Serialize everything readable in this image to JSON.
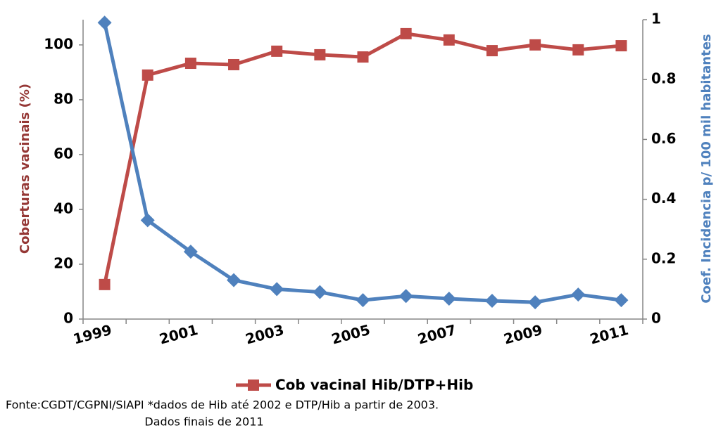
{
  "chart_data": {
    "type": "line",
    "categories": [
      "1999",
      null,
      "2001",
      null,
      "2003",
      null,
      "2005",
      null,
      "2007",
      null,
      "2009",
      null,
      "2011"
    ],
    "series": [
      {
        "name": "Cob vacinal Hib/DTP+Hib",
        "color": "#be4b48",
        "marker": "square",
        "values": [
          12.6,
          89,
          93.3,
          92.8,
          97.7,
          96.4,
          95.6,
          104.1,
          101.8,
          97.9,
          100,
          98.2,
          99.7
        ]
      },
      {
        "color": "#4f81bd",
        "marker": "diamond",
        "axis": "y2",
        "values": [
          0.99,
          0.33,
          0.225,
          0.13,
          0.1,
          0.09,
          0.063,
          0.077,
          0.068,
          0.061,
          0.056,
          0.082,
          0.063
        ]
      }
    ],
    "ylabel": "Coberturas vacinais (%)",
    "y2label": "Coef. Incidencia p/ 100 mil habitantes",
    "ylim": [
      0,
      109.2
    ],
    "yticks": [
      0,
      20,
      40,
      60,
      80,
      100
    ],
    "y2lim": [
      0,
      1
    ],
    "y2ticks": [
      0,
      0.2,
      0.4,
      0.6,
      0.8,
      1
    ],
    "grid": false,
    "notes": [
      "Fonte:CGDT/CGPNI/SIAPI *dados de Hib até 2002 e DTP/Hib  a partir de 2003.",
      "Dados finais de 2011"
    ]
  }
}
